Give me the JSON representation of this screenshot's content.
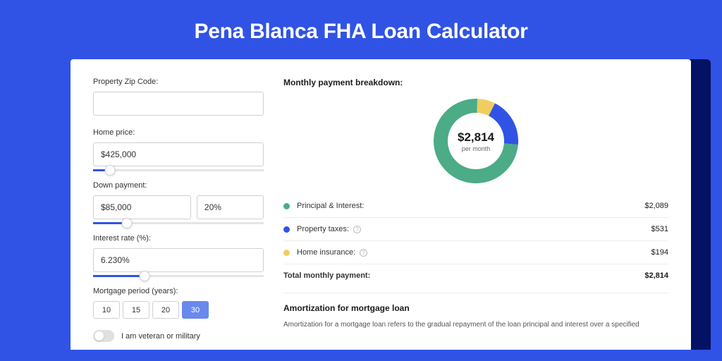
{
  "title": "Pena Blanca FHA Loan Calculator",
  "colors": {
    "page_bg": "#3053e5",
    "outer_card_bg": "#041265",
    "card_bg": "#ffffff",
    "slider_fill": "#3053e5",
    "period_active_bg": "#6a89ec"
  },
  "form": {
    "zip": {
      "label": "Property Zip Code:",
      "value": ""
    },
    "home_price": {
      "label": "Home price:",
      "value": "$425,000",
      "slider_pct": 10
    },
    "down_payment": {
      "label": "Down payment:",
      "amount": "$85,000",
      "percent": "20%",
      "slider_pct": 20
    },
    "interest": {
      "label": "Interest rate (%):",
      "value": "6.230%",
      "slider_pct": 30
    },
    "period": {
      "label": "Mortgage period (years):",
      "options": [
        "10",
        "15",
        "20",
        "30"
      ],
      "selected": "30"
    },
    "veteran": {
      "label": "I am veteran or military",
      "on": false
    }
  },
  "breakdown": {
    "title": "Monthly payment breakdown:",
    "center_amount": "$2,814",
    "center_sub": "per month",
    "donut": {
      "segments": [
        {
          "label": "Principal & Interest",
          "color": "#4bac87",
          "value": 2089,
          "pct": 74.2
        },
        {
          "label": "Property taxes",
          "color": "#3053e5",
          "value": 531,
          "pct": 18.9
        },
        {
          "label": "Home insurance",
          "color": "#f0cd5f",
          "value": 194,
          "pct": 6.9
        }
      ],
      "thickness": 20
    },
    "rows": [
      {
        "dot": "#4bac87",
        "label": "Principal & Interest:",
        "info": false,
        "value": "$2,089"
      },
      {
        "dot": "#3053e5",
        "label": "Property taxes:",
        "info": true,
        "value": "$531"
      },
      {
        "dot": "#f0cd5f",
        "label": "Home insurance:",
        "info": true,
        "value": "$194"
      }
    ],
    "total": {
      "label": "Total monthly payment:",
      "value": "$2,814"
    }
  },
  "amortization": {
    "title": "Amortization for mortgage loan",
    "text": "Amortization for a mortgage loan refers to the gradual repayment of the loan principal and interest over a specified"
  }
}
